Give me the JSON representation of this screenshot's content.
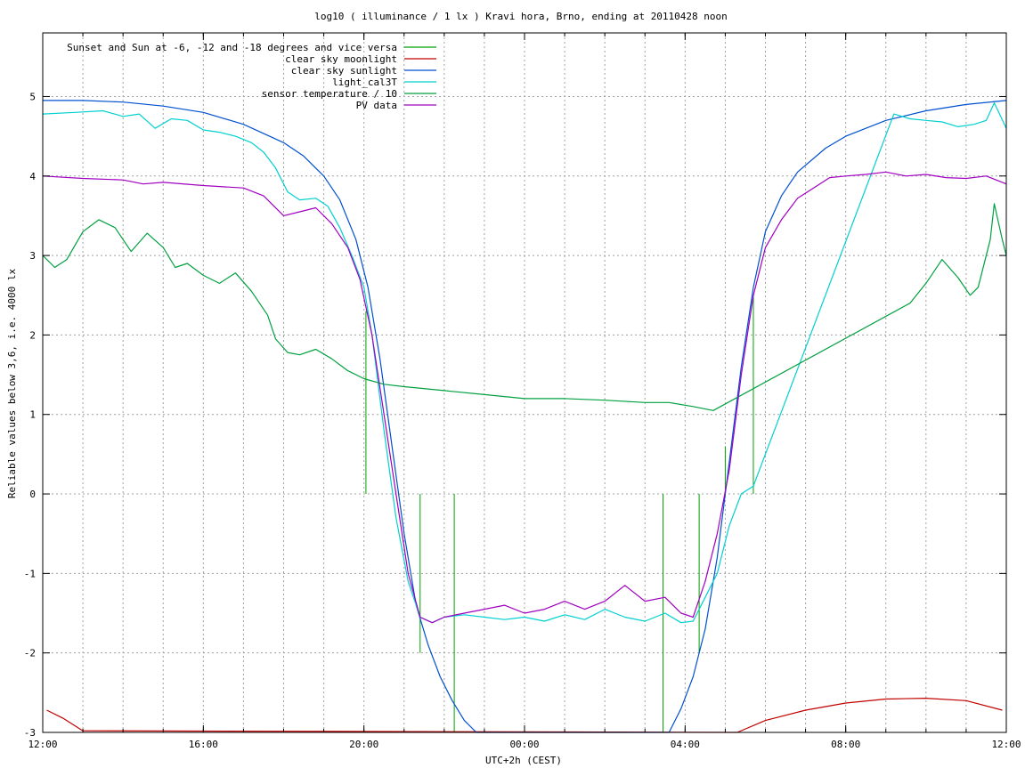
{
  "chart_data": {
    "type": "line",
    "title": "log10 ( illuminance / 1 lx ) Kravi hora, Brno, ending at 20110428 noon",
    "xlabel": "UTC+2h (CEST)",
    "ylabel": "Reliable values below 3,6, i.e. 4000 lx",
    "xlim": [
      12,
      36
    ],
    "ylim": [
      -3,
      5.8
    ],
    "grid": true,
    "legend_position": "top-left",
    "x_ticks": [
      {
        "value": 12,
        "label": "12:00"
      },
      {
        "value": 16,
        "label": "16:00"
      },
      {
        "value": 20,
        "label": "20:00"
      },
      {
        "value": 24,
        "label": "00:00"
      },
      {
        "value": 28,
        "label": "04:00"
      },
      {
        "value": 32,
        "label": "08:00"
      },
      {
        "value": 36,
        "label": "12:00"
      }
    ],
    "x_minor_step": 1,
    "y_ticks": [
      {
        "value": -3,
        "label": "-3"
      },
      {
        "value": -2,
        "label": "-2"
      },
      {
        "value": -1,
        "label": "-1"
      },
      {
        "value": 0,
        "label": "0"
      },
      {
        "value": 1,
        "label": "1"
      },
      {
        "value": 2,
        "label": "2"
      },
      {
        "value": 3,
        "label": "3"
      },
      {
        "value": 4,
        "label": "4"
      },
      {
        "value": 5,
        "label": "5"
      }
    ],
    "series": [
      {
        "name": "Sunset and Sun at -6, -12 and -18 degrees and vice versa",
        "color": "#00a000",
        "style": "impulses",
        "points": [
          [
            20.05,
            0,
            2.3
          ],
          [
            21.4,
            0,
            -2.0
          ],
          [
            22.25,
            0,
            -3.0
          ],
          [
            27.45,
            0,
            -3.0
          ],
          [
            28.35,
            0,
            -2.0
          ],
          [
            29.0,
            0,
            0.6
          ],
          [
            29.7,
            0,
            2.5
          ]
        ]
      },
      {
        "name": "clear sky moonlight",
        "color": "#c00000",
        "style": "line",
        "x": [
          12.1,
          12.5,
          13.0,
          29.3,
          30.0,
          31.0,
          32.0,
          33.0,
          34.0,
          35.0,
          35.9
        ],
        "y": [
          -2.72,
          -2.82,
          -2.98,
          -3.0,
          -2.85,
          -2.72,
          -2.63,
          -2.58,
          -2.57,
          -2.6,
          -2.72
        ]
      },
      {
        "name": "clear sky sunlight",
        "color": "#0050d0",
        "style": "line",
        "x": [
          12,
          13,
          14,
          15,
          16,
          17,
          18,
          18.5,
          19,
          19.4,
          19.8,
          20.1,
          20.4,
          20.7,
          21.0,
          21.3,
          21.6,
          21.9,
          22.2,
          22.5,
          22.8,
          27.6,
          27.9,
          28.2,
          28.5,
          28.8,
          29.1,
          29.4,
          29.7,
          30.0,
          30.4,
          30.8,
          31.5,
          32,
          33,
          34,
          35,
          36
        ],
        "y": [
          4.95,
          4.95,
          4.93,
          4.88,
          4.8,
          4.65,
          4.42,
          4.25,
          4.0,
          3.7,
          3.2,
          2.6,
          1.7,
          0.6,
          -0.5,
          -1.4,
          -1.9,
          -2.3,
          -2.6,
          -2.85,
          -3.0,
          -3.0,
          -2.7,
          -2.3,
          -1.7,
          -0.8,
          0.4,
          1.6,
          2.6,
          3.3,
          3.75,
          4.05,
          4.35,
          4.5,
          4.7,
          4.82,
          4.9,
          4.95
        ]
      },
      {
        "name": "light_cal3T",
        "color": "#00d0d0",
        "style": "line",
        "x": [
          12.0,
          12.8,
          13.5,
          14.0,
          14.4,
          14.8,
          15.2,
          15.6,
          16.0,
          16.4,
          16.8,
          17.2,
          17.5,
          17.8,
          18.1,
          18.4,
          18.8,
          19.1,
          19.4,
          19.7,
          20.0,
          20.2,
          20.5,
          20.8,
          21.1,
          21.4,
          21.7,
          22.0,
          22.5,
          23.0,
          23.5,
          24.0,
          24.5,
          25.0,
          25.5,
          26.0,
          26.5,
          27.0,
          27.5,
          27.9,
          28.2,
          28.5,
          28.8,
          29.1,
          29.4,
          29.7,
          33.2,
          33.6,
          34.0,
          34.4,
          34.8,
          35.2,
          35.5,
          35.7,
          36.0
        ],
        "y": [
          4.78,
          4.8,
          4.82,
          4.75,
          4.78,
          4.6,
          4.72,
          4.7,
          4.58,
          4.55,
          4.5,
          4.42,
          4.3,
          4.1,
          3.8,
          3.7,
          3.72,
          3.62,
          3.35,
          3.0,
          2.6,
          2.0,
          0.8,
          -0.3,
          -1.1,
          -1.55,
          -1.62,
          -1.55,
          -1.52,
          -1.55,
          -1.58,
          -1.55,
          -1.6,
          -1.52,
          -1.58,
          -1.45,
          -1.55,
          -1.6,
          -1.5,
          -1.62,
          -1.6,
          -1.3,
          -1.0,
          -0.4,
          0.0,
          0.1,
          4.78,
          4.72,
          4.7,
          4.68,
          4.62,
          4.65,
          4.7,
          4.92,
          4.6
        ]
      },
      {
        "name": "sensor temperature / 10",
        "color": "#00a040",
        "style": "line",
        "x": [
          12.0,
          12.3,
          12.6,
          13.0,
          13.4,
          13.8,
          14.2,
          14.6,
          15.0,
          15.3,
          15.6,
          16.0,
          16.4,
          16.8,
          17.2,
          17.6,
          17.8,
          18.1,
          18.4,
          18.8,
          19.2,
          19.6,
          20.0,
          20.5,
          21.0,
          22.0,
          23.0,
          24.0,
          25.0,
          26.0,
          27.0,
          27.6,
          28.2,
          28.7,
          33.6,
          34.0,
          34.4,
          34.8,
          35.1,
          35.3,
          35.6,
          35.7,
          35.9,
          36.0
        ],
        "y": [
          3.0,
          2.85,
          2.95,
          3.3,
          3.45,
          3.35,
          3.05,
          3.28,
          3.1,
          2.85,
          2.9,
          2.75,
          2.65,
          2.78,
          2.55,
          2.25,
          1.95,
          1.78,
          1.75,
          1.82,
          1.7,
          1.55,
          1.45,
          1.38,
          1.35,
          1.3,
          1.25,
          1.2,
          1.2,
          1.18,
          1.15,
          1.15,
          1.1,
          1.05,
          2.4,
          2.65,
          2.95,
          2.72,
          2.5,
          2.6,
          3.2,
          3.65,
          3.2,
          3.0
        ]
      },
      {
        "name": "PV data",
        "color": "#a000c0",
        "style": "line",
        "x": [
          12.0,
          13.0,
          14.0,
          14.5,
          15.0,
          16.0,
          17.0,
          17.5,
          18.0,
          18.4,
          18.8,
          19.2,
          19.6,
          19.9,
          20.2,
          20.5,
          20.8,
          21.1,
          21.4,
          21.7,
          22.0,
          22.5,
          23.0,
          23.5,
          24.0,
          24.5,
          25.0,
          25.5,
          26.0,
          26.5,
          27.0,
          27.5,
          27.9,
          28.2,
          28.5,
          28.8,
          29.1,
          29.4,
          29.7,
          30.0,
          30.4,
          30.8,
          31.2,
          31.6,
          32.0,
          32.5,
          33.0,
          33.5,
          34.0,
          34.5,
          35.0,
          35.5,
          36.0
        ],
        "y": [
          4.0,
          3.97,
          3.95,
          3.9,
          3.92,
          3.88,
          3.85,
          3.75,
          3.5,
          3.55,
          3.6,
          3.4,
          3.1,
          2.7,
          2.0,
          1.0,
          0.0,
          -1.0,
          -1.55,
          -1.62,
          -1.55,
          -1.5,
          -1.45,
          -1.4,
          -1.5,
          -1.45,
          -1.35,
          -1.45,
          -1.35,
          -1.15,
          -1.35,
          -1.3,
          -1.5,
          -1.55,
          -1.1,
          -0.5,
          0.3,
          1.5,
          2.5,
          3.1,
          3.45,
          3.72,
          3.85,
          3.98,
          4.0,
          4.02,
          4.05,
          4.0,
          4.02,
          3.98,
          3.97,
          4.0,
          3.9
        ]
      }
    ]
  }
}
